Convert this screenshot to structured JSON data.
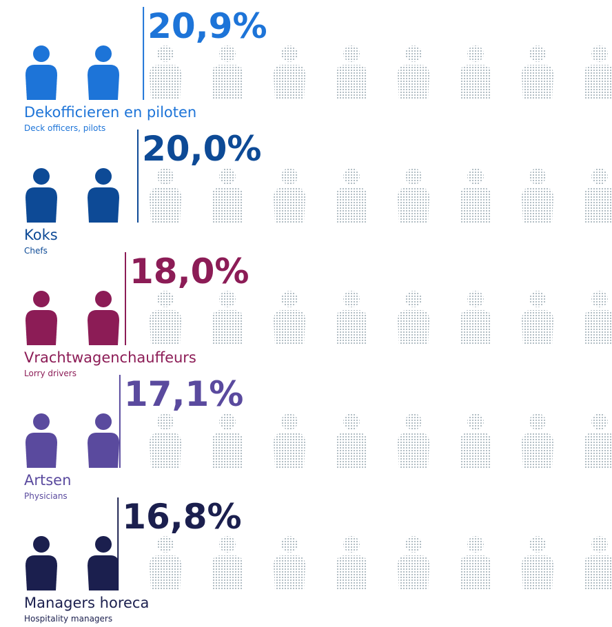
{
  "chart_data": {
    "type": "pictogram",
    "categories": [
      "Dekofficieren en piloten",
      "Koks",
      "Vrachtwagenchauffeurs",
      "Artsen",
      "Managers horeca"
    ],
    "subcategories": [
      "Deck officers, pilots",
      "Chefs",
      "Lorry drivers",
      "Physicians",
      "Hospitality managers"
    ],
    "values": [
      20.9,
      20.0,
      18.0,
      17.1,
      16.8
    ],
    "value_labels": [
      "20,9%",
      "20,0%",
      "18,0%",
      "17,1%",
      "16,8%"
    ],
    "colors": [
      "#1d74d8",
      "#0d4a96",
      "#8c1c56",
      "#5a4a9e",
      "#1b1f4e"
    ],
    "xlim": [
      0,
      100
    ]
  }
}
